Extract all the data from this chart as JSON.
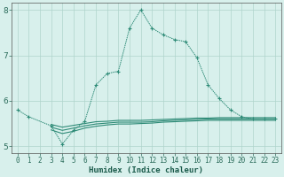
{
  "xlabel": "Humidex (Indice chaleur)",
  "x_values": [
    0,
    1,
    2,
    3,
    4,
    5,
    6,
    7,
    8,
    9,
    10,
    11,
    12,
    13,
    14,
    15,
    16,
    17,
    18,
    19,
    20,
    21,
    22,
    23
  ],
  "main_line": [
    5.8,
    5.65,
    null,
    5.45,
    5.05,
    5.35,
    5.55,
    6.35,
    6.6,
    6.65,
    7.6,
    8.0,
    7.6,
    7.45,
    7.35,
    7.3,
    6.95,
    6.35,
    6.05,
    5.8,
    5.65,
    5.6,
    5.6,
    5.6
  ],
  "flat_line1": [
    null,
    null,
    null,
    5.48,
    5.42,
    5.46,
    5.5,
    5.54,
    5.55,
    5.57,
    5.57,
    5.57,
    5.58,
    5.59,
    5.6,
    5.61,
    5.62,
    5.62,
    5.63,
    5.63,
    5.63,
    5.63,
    5.63,
    5.63
  ],
  "flat_line2": [
    null,
    null,
    null,
    5.42,
    5.35,
    5.4,
    5.45,
    5.49,
    5.51,
    5.53,
    5.53,
    5.53,
    5.54,
    5.56,
    5.57,
    5.58,
    5.59,
    5.6,
    5.6,
    5.6,
    5.6,
    5.6,
    5.6,
    5.6
  ],
  "flat_line3": [
    null,
    null,
    null,
    5.36,
    5.28,
    5.33,
    5.4,
    5.44,
    5.47,
    5.49,
    5.49,
    5.5,
    5.51,
    5.53,
    5.54,
    5.55,
    5.56,
    5.57,
    5.57,
    5.57,
    5.57,
    5.57,
    5.57,
    5.57
  ],
  "line_color": "#2e8b77",
  "bg_color": "#d8f0ec",
  "grid_color": "#afd4cc",
  "ylim": [
    4.85,
    8.15
  ],
  "yticks": [
    5,
    6,
    7,
    8
  ],
  "xticks": [
    0,
    1,
    2,
    3,
    4,
    5,
    6,
    7,
    8,
    9,
    10,
    11,
    12,
    13,
    14,
    15,
    16,
    17,
    18,
    19,
    20,
    21,
    22,
    23
  ],
  "xlabels": [
    "0",
    "1",
    "2",
    "3",
    "4",
    "5",
    "6",
    "7",
    "8",
    "9",
    "10",
    "11",
    "12",
    "13",
    "14",
    "15",
    "16",
    "17",
    "18",
    "19",
    "20",
    "21",
    "22",
    "23"
  ]
}
